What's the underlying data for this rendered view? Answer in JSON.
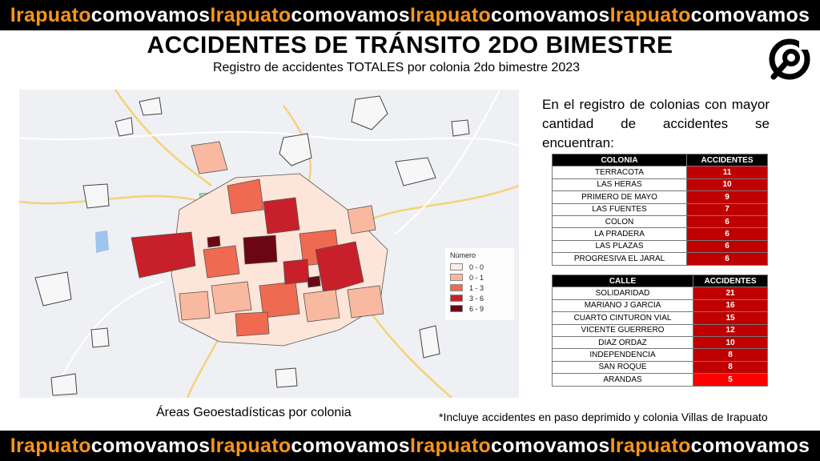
{
  "banner": {
    "segments": [
      {
        "a": "Irapuato",
        "b": "comovamos"
      },
      {
        "a": "Irapuato",
        "b": "comovamos"
      },
      {
        "a": "Irapuato",
        "b": "comovamos"
      },
      {
        "a": "Irapuato",
        "b": "comovamos"
      }
    ],
    "colors": {
      "a": "#f7941d",
      "b": "#ffffff",
      "background": "#000000"
    }
  },
  "header": {
    "title": "ACCIDENTES DE TRÁNSITO 2DO BIMESTRE",
    "subtitle": "Registro de accidentes TOTALES por colonia 2do bimestre 2023"
  },
  "logo": {
    "icon": "comovamos-logo-icon"
  },
  "map": {
    "caption": "Áreas Geoestadísticas por colonia",
    "legend": {
      "title": "Número",
      "items": [
        {
          "label": "0 - 0",
          "color": "#fdece4"
        },
        {
          "label": "0 - 1",
          "color": "#f9b9a0"
        },
        {
          "label": "1 - 3",
          "color": "#ef6a50"
        },
        {
          "label": "3 - 6",
          "color": "#c8202a"
        },
        {
          "label": "6 - 9",
          "color": "#6b0713"
        }
      ]
    }
  },
  "intro": "En el registro de colonias con mayor cantidad de accidentes se encuentran:",
  "colonias": {
    "header": [
      "COLONIA",
      "ACCIDENTES"
    ],
    "rows": [
      {
        "name": "TERRACOTA",
        "value": "11"
      },
      {
        "name": "LAS HERAS",
        "value": "10"
      },
      {
        "name": "PRIMERO DE MAYO",
        "value": "9"
      },
      {
        "name": "LAS FUENTES",
        "value": "7"
      },
      {
        "name": "COLON",
        "value": "6"
      },
      {
        "name": "LA PRADERA",
        "value": "6"
      },
      {
        "name": "LAS PLAZAS",
        "value": "6"
      },
      {
        "name": "PROGRESIVA EL JARAL",
        "value": "6"
      }
    ]
  },
  "calles": {
    "header": [
      "CALLE",
      "ACCIDENTES"
    ],
    "rows": [
      {
        "name": "SOLIDARIDAD",
        "value": "21"
      },
      {
        "name": "MARIANO J GARCIA",
        "value": "16"
      },
      {
        "name": "CUARTO CINTURON VIAL",
        "value": "15"
      },
      {
        "name": "VICENTE GUERRERO",
        "value": "12"
      },
      {
        "name": "DIAZ ORDAZ",
        "value": "10"
      },
      {
        "name": "INDEPENDENCIA",
        "value": "8"
      },
      {
        "name": "SAN ROQUE",
        "value": "8"
      },
      {
        "name": "ARANDAS",
        "value": "5"
      }
    ]
  },
  "footnote": "*Incluye accidentes en paso deprimido y colonia Villas de Irapuato"
}
